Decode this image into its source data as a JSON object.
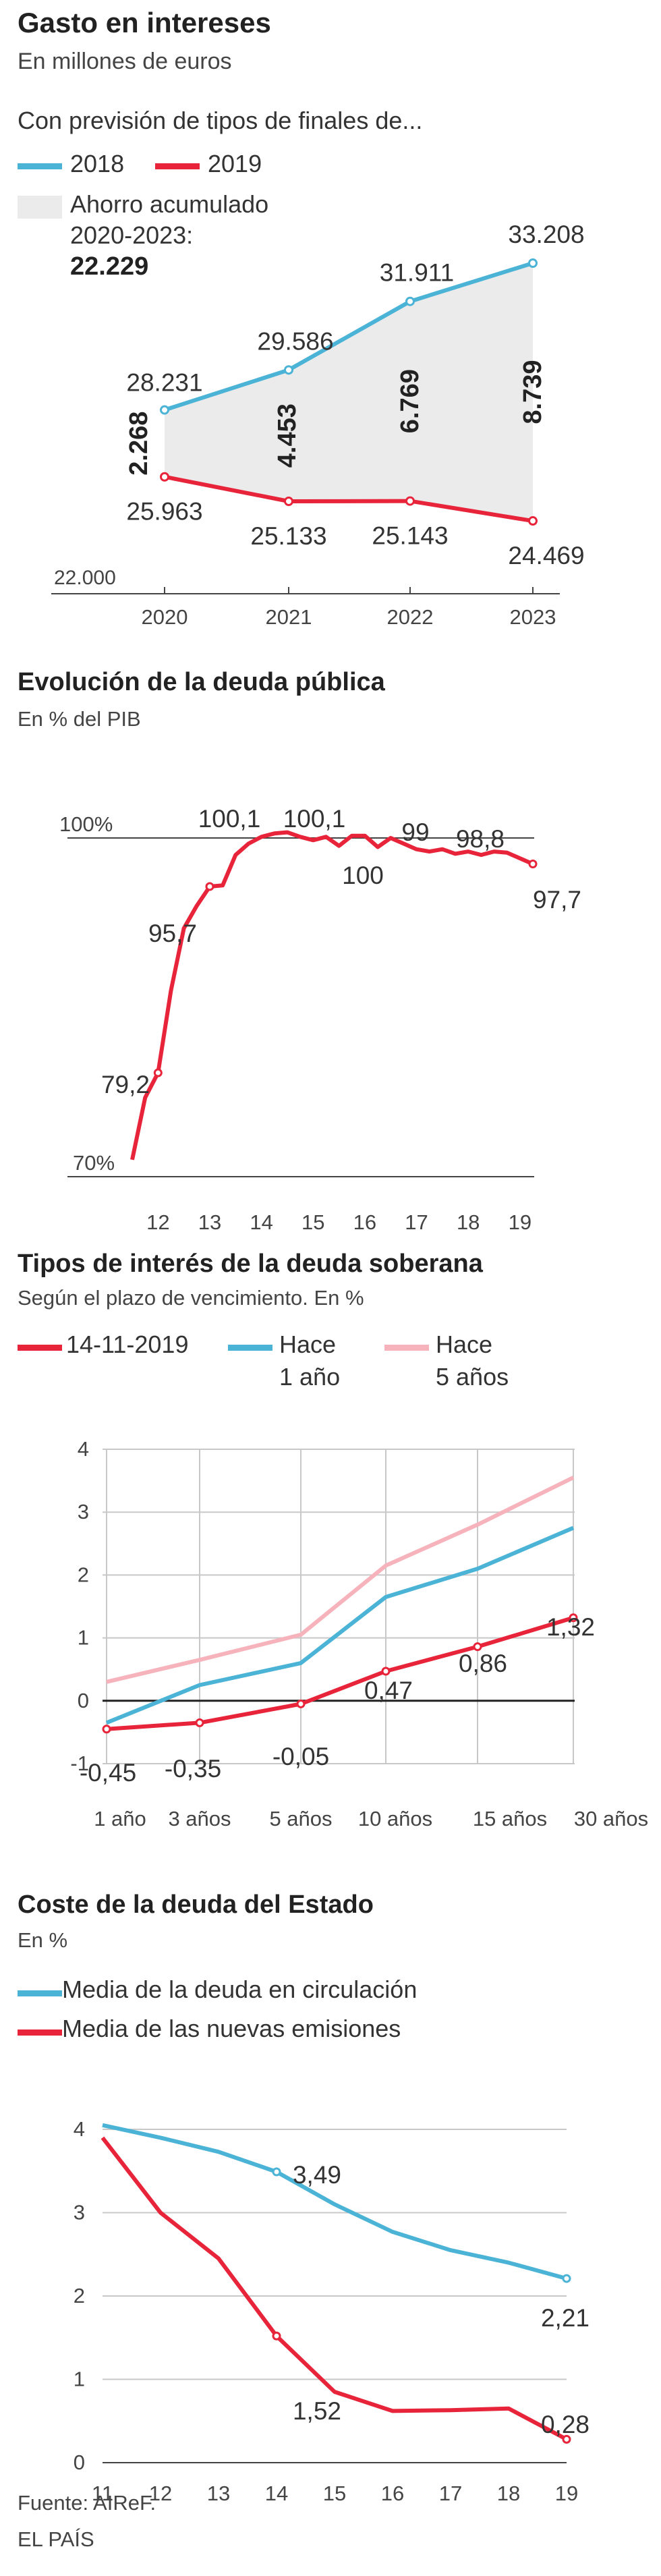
{
  "source": "Fuente: AIReF.",
  "brand": "EL PAÍS",
  "colors": {
    "blue": "#4ab3d6",
    "red": "#e8243a",
    "pink": "#f7b3bb",
    "shade": "#ebebeb",
    "axis": "#444444",
    "grid": "#c8c8c8"
  },
  "chart_data": [
    {
      "type": "line",
      "title": "Gasto en intereses",
      "subtitle": "En millones de euros",
      "legend_title": "Con previsión de tipos de finales de...",
      "x": [
        "2020",
        "2021",
        "2022",
        "2023"
      ],
      "series": [
        {
          "name": "2018",
          "values": [
            28231,
            29586,
            31911,
            33208
          ],
          "labels": [
            "28.231",
            "29.586",
            "31.911",
            "33.208"
          ]
        },
        {
          "name": "2019",
          "values": [
            25963,
            25133,
            25143,
            24469
          ],
          "labels": [
            "25.963",
            "25.133",
            "25.143",
            "24.469"
          ]
        }
      ],
      "area": {
        "legend": [
          "Ahorro acumulado",
          "2020-2023:",
          "22.229"
        ],
        "values": [
          2268,
          4453,
          6769,
          8739
        ],
        "labels": [
          "2.268",
          "4.453",
          "6.769",
          "8.739"
        ]
      },
      "ylim": [
        22000,
        33500
      ],
      "y_tick_label": "22.000"
    },
    {
      "type": "line",
      "title": "Evolución de la deuda pública",
      "subtitle": "En % del PIB",
      "x_ticks": [
        "12",
        "13",
        "14",
        "15",
        "16",
        "17",
        "18",
        "19"
      ],
      "y_ticks": [
        "100%",
        "70%"
      ],
      "xlim": [
        11.5,
        19.25
      ],
      "ylim": [
        70,
        100
      ],
      "series": [
        {
          "name": "",
          "x": [
            11.5,
            11.75,
            12.0,
            12.25,
            12.5,
            12.75,
            13.0,
            13.25,
            13.5,
            13.75,
            14.0,
            14.25,
            14.5,
            14.75,
            15.0,
            15.25,
            15.5,
            15.75,
            16.0,
            16.25,
            16.5,
            16.75,
            17.0,
            17.25,
            17.5,
            17.75,
            18.0,
            18.25,
            18.5,
            18.75,
            19.0,
            19.25
          ],
          "values": [
            71.5,
            77.0,
            79.2,
            86.5,
            92.0,
            94.0,
            95.7,
            95.8,
            98.5,
            99.5,
            100.1,
            100.4,
            100.5,
            100.1,
            99.8,
            100.1,
            99.3,
            100.2,
            100.2,
            99.2,
            100.0,
            99.5,
            99.0,
            98.8,
            99.0,
            98.6,
            98.8,
            98.5,
            98.8,
            98.7,
            98.2,
            97.7
          ]
        }
      ],
      "annotations": [
        "79,2",
        "95,7",
        "100,1",
        "100,1",
        "100",
        "99",
        "98,8",
        "97,7"
      ]
    },
    {
      "type": "line",
      "title": "Tipos de interés de la deuda soberana",
      "subtitle": "Según el plazo de vencimiento. En %",
      "categories": [
        "1 año",
        "3 años",
        "5 años",
        "10 años",
        "15 años",
        "30 años"
      ],
      "y_ticks": [
        "4",
        "3",
        "2",
        "1",
        "0",
        "-1"
      ],
      "ylim": [
        -1,
        4
      ],
      "series": [
        {
          "name": "14-11-2019",
          "values": [
            -0.45,
            -0.35,
            -0.05,
            0.47,
            0.86,
            1.32
          ],
          "labels": [
            "-0,45",
            "-0,35",
            "-0,05",
            "0,47",
            "0,86",
            "1,32"
          ]
        },
        {
          "name": "Hace 1 año",
          "name_lines": [
            "Hace",
            "1 año"
          ],
          "values": [
            -0.35,
            0.25,
            0.6,
            1.65,
            2.1,
            2.75
          ]
        },
        {
          "name": "Hace 5 años",
          "name_lines": [
            "Hace",
            "5 años"
          ],
          "values": [
            0.3,
            0.65,
            1.05,
            2.15,
            2.8,
            3.55
          ]
        }
      ]
    },
    {
      "type": "line",
      "title": "Coste de la deuda del Estado",
      "subtitle": "En %",
      "categories": [
        "11",
        "12",
        "13",
        "14",
        "15",
        "16",
        "17",
        "18",
        "19"
      ],
      "y_ticks": [
        "4",
        "3",
        "2",
        "1",
        "0"
      ],
      "ylim": [
        0,
        4
      ],
      "series": [
        {
          "name": "Media de la deuda en circulación",
          "values": [
            4.05,
            3.9,
            3.73,
            3.49,
            3.1,
            2.77,
            2.55,
            2.4,
            2.21
          ]
        },
        {
          "name": "Media de las nuevas emisiones",
          "values": [
            3.9,
            3.0,
            2.45,
            1.52,
            0.85,
            0.62,
            0.63,
            0.65,
            0.28
          ]
        }
      ],
      "annotations": [
        "3,49",
        "2,21",
        "1,52",
        "0,28"
      ]
    }
  ]
}
